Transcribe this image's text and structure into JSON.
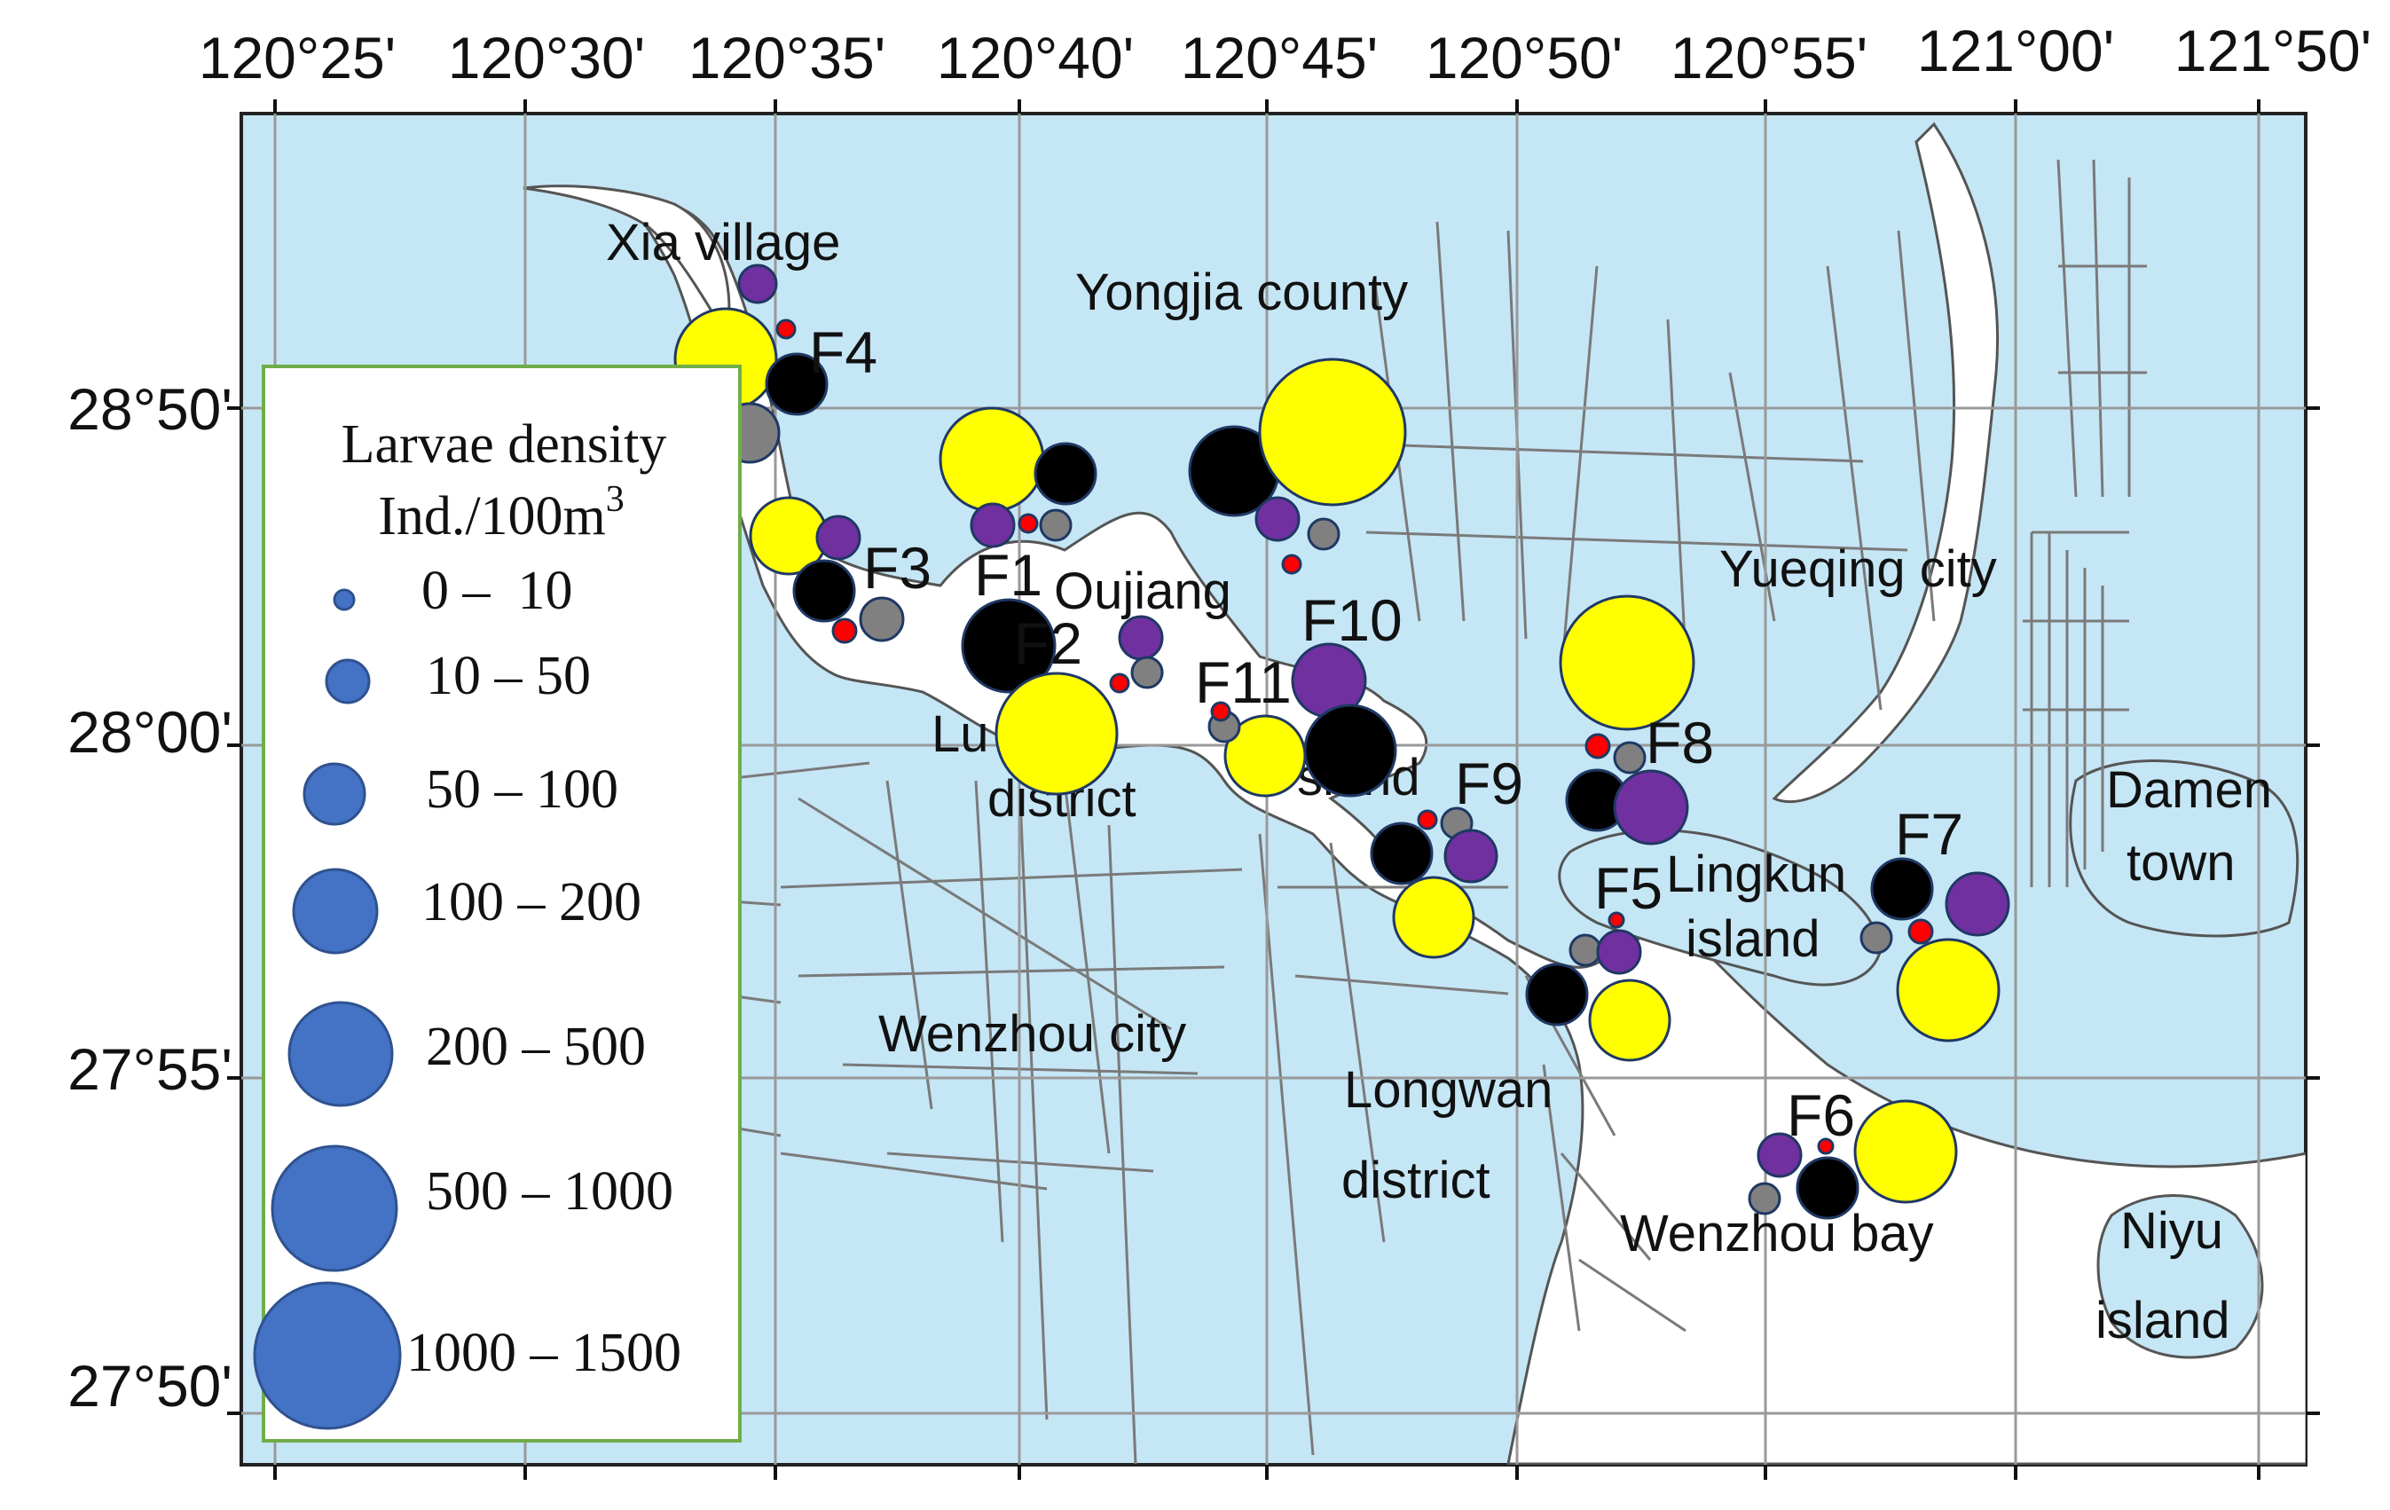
{
  "map": {
    "top_ticks": [
      "120°25'",
      "120°30'",
      "120°35'",
      "120°40'",
      "120°45'",
      "120°50'",
      "120°55'",
      "121°00'",
      "121°50'"
    ],
    "left_ticks": [
      "28°50'",
      "28°00'",
      "27°55'",
      "27°50'"
    ],
    "places": [
      {
        "id": "xia-village",
        "text": "Xia village"
      },
      {
        "id": "yongjia-county",
        "text": "Yongjia county"
      },
      {
        "id": "yueqing-city",
        "text": "Yueqing city"
      },
      {
        "id": "oujiang",
        "text": "Oujiang"
      },
      {
        "id": "lucheng-district-1",
        "text": "Lu      g"
      },
      {
        "id": "lucheng-district-2",
        "text": "district"
      },
      {
        "id": "island-fragment",
        "text": "sland"
      },
      {
        "id": "damen-1",
        "text": "Damen"
      },
      {
        "id": "damen-2",
        "text": "town"
      },
      {
        "id": "lingkun-1",
        "text": "Lingkun"
      },
      {
        "id": "lingkun-2",
        "text": "island"
      },
      {
        "id": "wenzhou-city",
        "text": "Wenzhou city"
      },
      {
        "id": "longwan-1",
        "text": "Longwan"
      },
      {
        "id": "longwan-2",
        "text": "district"
      },
      {
        "id": "wenzhou-bay",
        "text": "Wenzhou bay"
      },
      {
        "id": "niyu-1",
        "text": "Niyu"
      },
      {
        "id": "niyu-2",
        "text": "island"
      }
    ],
    "stations": [
      "F1",
      "F2",
      "F3",
      "F4",
      "F5",
      "F6",
      "F7",
      "F8",
      "F9",
      "F10",
      "F11"
    ],
    "colors": {
      "water": "#c5e6f5",
      "land": "#ffffff",
      "road": "#7a7a7a",
      "yellow": "#ffff00",
      "black": "#000000",
      "purple": "#7030a0",
      "gray": "#808080",
      "red": "#ff0000",
      "legend_blue": "#4472c4",
      "legend_border": "#70ad47"
    }
  },
  "legend": {
    "title_line1": "Larvae density",
    "title_line2": "Ind./100m",
    "title_sup": "3",
    "classes": [
      "0 –  10",
      "10 – 50",
      "50 – 100",
      "100 – 200",
      "200 – 500",
      "500 – 1000",
      "1000 – 1500"
    ]
  }
}
